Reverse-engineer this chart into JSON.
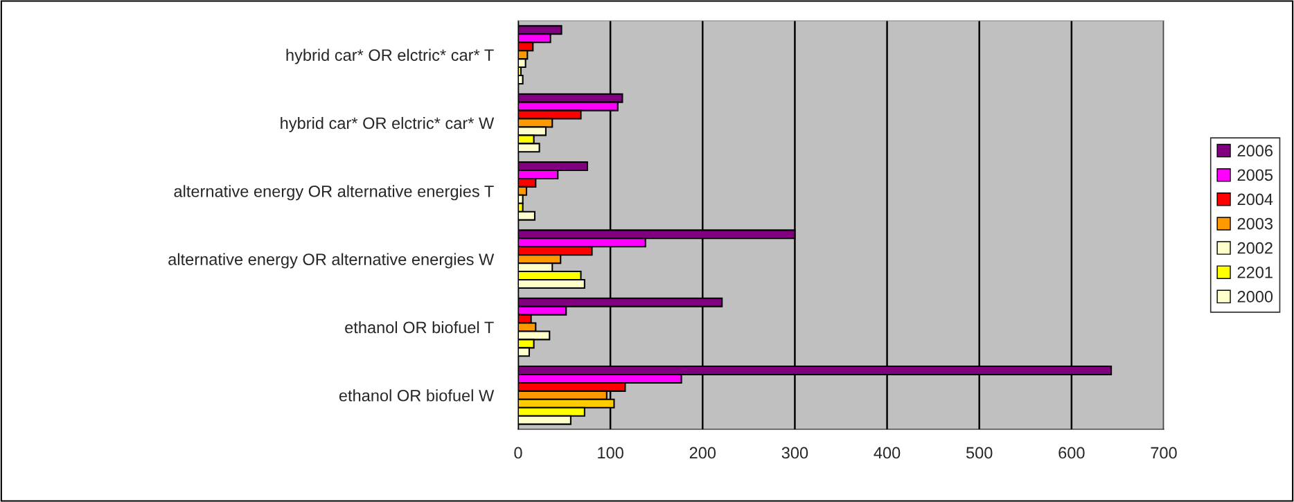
{
  "chart_data": {
    "type": "bar",
    "orientation": "horizontal",
    "categories": [
      "hybrid car* OR elctric* car* T",
      "hybrid car* OR elctric* car* W",
      "alternative energy OR alternative energies T",
      "alternative energy OR alternative energies W",
      "ethanol OR biofuel T",
      "ethanol OR biofuel W"
    ],
    "series": [
      {
        "name": "2006",
        "color": "#800080",
        "values": [
          47,
          113,
          75,
          300,
          221,
          643
        ]
      },
      {
        "name": "2005",
        "color": "#ff00ff",
        "values": [
          35,
          108,
          43,
          138,
          52,
          177
        ]
      },
      {
        "name": "2004",
        "color": "#ff0000",
        "values": [
          16,
          68,
          19,
          80,
          14,
          116
        ]
      },
      {
        "name": "2003",
        "color": "#ff9900",
        "values": [
          10,
          37,
          9,
          46,
          19,
          96
        ]
      },
      {
        "name": "2002",
        "color": "#ffffcc",
        "colors": [
          "#ffffcc",
          "#ffffcc",
          "#ffffcc",
          "#ffffcc",
          "#ffffcc",
          "#ffcc00"
        ],
        "values": [
          8,
          30,
          5,
          37,
          34,
          104
        ]
      },
      {
        "name": "2201",
        "color": "#ffff00",
        "values": [
          3,
          17,
          5,
          68,
          17,
          72
        ]
      },
      {
        "name": "2000",
        "color": "#ffffcc",
        "values": [
          5,
          23,
          18,
          72,
          12,
          57
        ]
      }
    ],
    "xlim": [
      0,
      700
    ],
    "xticks": [
      0,
      100,
      200,
      300,
      400,
      500,
      600,
      700
    ],
    "grid": "x",
    "legend": "right"
  }
}
